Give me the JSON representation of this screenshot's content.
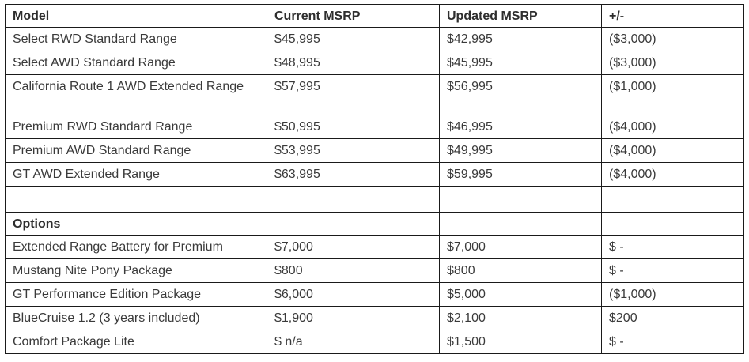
{
  "table": {
    "headers": [
      "Model",
      "Current MSRP",
      "Updated MSRP",
      "+/-"
    ],
    "models": [
      {
        "model": "Select RWD Standard Range",
        "current": "$45,995",
        "updated": "$42,995",
        "diff": "($3,000)"
      },
      {
        "model": "Select AWD Standard Range",
        "current": "$48,995",
        "updated": "$45,995",
        "diff": "($3,000)"
      },
      {
        "model": "California Route 1 AWD Extended Range",
        "current": "$57,995",
        "updated": "$56,995",
        "diff": "($1,000)"
      },
      {
        "model": "Premium RWD Standard Range",
        "current": "$50,995",
        "updated": "$46,995",
        "diff": "($4,000)"
      },
      {
        "model": "Premium AWD Standard Range",
        "current": "$53,995",
        "updated": "$49,995",
        "diff": "($4,000)"
      },
      {
        "model": "GT AWD Extended Range",
        "current": "$63,995",
        "updated": "$59,995",
        "diff": "($4,000)"
      }
    ],
    "options_label": "Options",
    "options": [
      {
        "model": "Extended Range Battery for Premium",
        "current": "$7,000",
        "updated": "$7,000",
        "diff": "$ -"
      },
      {
        "model": "Mustang Nite Pony Package",
        "current": "$800",
        "updated": "$800",
        "diff": "$ -"
      },
      {
        "model": "GT Performance Edition Package",
        "current": "$6,000",
        "updated": "$5,000",
        "diff": "($1,000)"
      },
      {
        "model": "BlueCruise 1.2 (3 years included)",
        "current": "$1,900",
        "updated": "$2,100",
        "diff": "$200"
      },
      {
        "model": "Comfort Package Lite",
        "current": "$ n/a",
        "updated": "$1,500",
        "diff": "$ -"
      }
    ]
  }
}
